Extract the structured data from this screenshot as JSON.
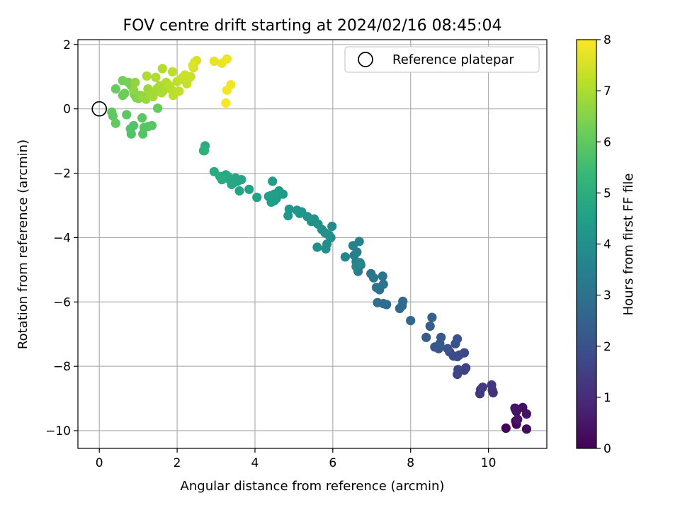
{
  "chart_data": {
    "type": "scatter",
    "title": "FOV centre drift starting at 2024/02/16 08:45:04",
    "xlabel": "Angular distance from reference (arcmin)",
    "ylabel": "Rotation from reference (arcmin)",
    "xlim": [
      -0.55,
      11.5
    ],
    "ylim": [
      -10.55,
      2.15
    ],
    "xticks": [
      0,
      2,
      4,
      6,
      8,
      10
    ],
    "yticks": [
      -10,
      -8,
      -6,
      -4,
      -2,
      0,
      2
    ],
    "grid": true,
    "legend": {
      "placement": "top-right",
      "entries": [
        "Reference platepar"
      ]
    },
    "reference_point": {
      "x": 0,
      "y": 0
    },
    "colorbar": {
      "label": "Hours from first FF file",
      "range": [
        0,
        8
      ],
      "ticks": [
        0,
        1,
        2,
        3,
        4,
        5,
        6,
        7,
        8
      ],
      "colormap": "viridis"
    },
    "points": [
      [
        10.45,
        -9.92,
        0.05
      ],
      [
        10.7,
        -9.7,
        0.1
      ],
      [
        10.72,
        -9.8,
        0.15
      ],
      [
        10.98,
        -9.95,
        0.2
      ],
      [
        10.68,
        -9.3,
        0.25
      ],
      [
        10.72,
        -9.4,
        0.3
      ],
      [
        10.88,
        -9.28,
        0.35
      ],
      [
        10.98,
        -9.48,
        0.4
      ],
      [
        10.7,
        -9.35,
        0.45
      ],
      [
        10.75,
        -9.65,
        0.5
      ],
      [
        10.1,
        -8.75,
        1.1
      ],
      [
        10.12,
        -8.82,
        1.15
      ],
      [
        9.8,
        -8.72,
        1.2
      ],
      [
        9.78,
        -8.85,
        1.25
      ],
      [
        10.08,
        -8.58,
        1.3
      ],
      [
        9.85,
        -8.65,
        1.35
      ],
      [
        9.38,
        -8.12,
        1.5
      ],
      [
        9.42,
        -8.05,
        1.55
      ],
      [
        9.2,
        -8.25,
        1.6
      ],
      [
        9.22,
        -8.1,
        1.65
      ],
      [
        9.38,
        -7.58,
        1.7
      ],
      [
        9.25,
        -7.65,
        1.75
      ],
      [
        9.1,
        -7.68,
        1.8
      ],
      [
        9.2,
        -7.7,
        1.85
      ],
      [
        9.0,
        -7.55,
        1.9
      ],
      [
        9.15,
        -7.3,
        1.95
      ],
      [
        9.2,
        -7.15,
        2.0
      ],
      [
        8.95,
        -7.45,
        2.05
      ],
      [
        8.72,
        -7.45,
        2.1
      ],
      [
        8.62,
        -7.4,
        2.15
      ],
      [
        8.78,
        -7.1,
        2.2
      ],
      [
        8.75,
        -7.3,
        2.25
      ],
      [
        8.4,
        -7.1,
        2.3
      ],
      [
        8.5,
        -6.75,
        2.35
      ],
      [
        8.55,
        -6.48,
        2.4
      ],
      [
        8.0,
        -6.58,
        2.6
      ],
      [
        7.78,
        -6.12,
        2.65
      ],
      [
        7.72,
        -6.2,
        2.7
      ],
      [
        7.8,
        -5.98,
        2.75
      ],
      [
        7.3,
        -6.05,
        2.8
      ],
      [
        7.38,
        -6.08,
        2.85
      ],
      [
        7.15,
        -6.02,
        2.9
      ],
      [
        7.2,
        -5.62,
        2.95
      ],
      [
        7.12,
        -5.55,
        3.0
      ],
      [
        7.3,
        -5.45,
        3.05
      ],
      [
        7.28,
        -5.2,
        3.1
      ],
      [
        6.98,
        -5.12,
        3.15
      ],
      [
        7.05,
        -5.25,
        3.2
      ],
      [
        6.65,
        -5.05,
        3.3
      ],
      [
        6.72,
        -4.85,
        3.35
      ],
      [
        6.6,
        -4.75,
        3.4
      ],
      [
        6.55,
        -4.55,
        3.45
      ],
      [
        6.62,
        -4.45,
        3.5
      ],
      [
        6.68,
        -4.12,
        3.55
      ],
      [
        6.52,
        -4.25,
        3.6
      ],
      [
        6.32,
        -4.6,
        3.65
      ],
      [
        6.7,
        -4.78,
        3.7
      ],
      [
        6.6,
        -4.9,
        3.75
      ],
      [
        5.98,
        -3.65,
        3.85
      ],
      [
        5.95,
        -4.0,
        3.9
      ],
      [
        5.85,
        -4.2,
        3.92
      ],
      [
        5.82,
        -4.35,
        3.94
      ],
      [
        5.6,
        -4.3,
        3.96
      ],
      [
        5.72,
        -3.75,
        3.98
      ],
      [
        5.8,
        -3.85,
        4.0
      ],
      [
        5.9,
        -3.92,
        4.02
      ],
      [
        5.62,
        -3.58,
        4.05
      ],
      [
        5.52,
        -3.42,
        4.08
      ],
      [
        5.45,
        -3.5,
        4.1
      ],
      [
        5.35,
        -3.35,
        4.12
      ],
      [
        5.2,
        -3.2,
        4.15
      ],
      [
        5.15,
        -3.25,
        4.18
      ],
      [
        5.08,
        -3.15,
        4.2
      ],
      [
        4.88,
        -3.12,
        4.22
      ],
      [
        4.85,
        -3.32,
        4.25
      ],
      [
        4.72,
        -2.65,
        4.35
      ],
      [
        4.62,
        -2.55,
        4.38
      ],
      [
        4.55,
        -2.78,
        4.4
      ],
      [
        4.5,
        -2.85,
        4.42
      ],
      [
        4.42,
        -2.9,
        4.44
      ],
      [
        4.35,
        -2.72,
        4.46
      ],
      [
        4.45,
        -2.25,
        4.48
      ],
      [
        4.5,
        -2.65,
        4.5
      ],
      [
        4.4,
        -2.7,
        4.52
      ],
      [
        4.05,
        -2.75,
        4.55
      ],
      [
        3.85,
        -2.5,
        4.58
      ],
      [
        3.6,
        -2.55,
        4.65
      ],
      [
        3.65,
        -2.2,
        4.68
      ],
      [
        3.55,
        -2.25,
        4.7
      ],
      [
        3.5,
        -2.15,
        4.72
      ],
      [
        3.45,
        -2.3,
        4.74
      ],
      [
        3.4,
        -2.35,
        4.76
      ],
      [
        3.35,
        -2.2,
        4.78
      ],
      [
        3.3,
        -2.1,
        4.8
      ],
      [
        3.25,
        -2.05,
        4.82
      ],
      [
        3.2,
        -2.15,
        4.84
      ],
      [
        3.15,
        -2.2,
        4.86
      ],
      [
        3.1,
        -2.1,
        4.88
      ],
      [
        2.95,
        -1.95,
        4.9
      ],
      [
        2.72,
        -1.15,
        4.95
      ],
      [
        2.7,
        -1.3,
        5.0
      ],
      [
        2.68,
        -1.3,
        5.05
      ],
      [
        0.82,
        -0.78,
        5.75
      ],
      [
        0.8,
        -0.62,
        5.78
      ],
      [
        0.88,
        -0.52,
        5.8
      ],
      [
        1.12,
        -0.78,
        5.82
      ],
      [
        1.15,
        -0.58,
        5.85
      ],
      [
        1.25,
        -0.55,
        5.88
      ],
      [
        1.35,
        -0.52,
        5.9
      ],
      [
        1.1,
        -0.28,
        5.92
      ],
      [
        0.7,
        -0.18,
        5.95
      ],
      [
        0.32,
        -0.1,
        5.98
      ],
      [
        0.35,
        -0.22,
        6.0
      ],
      [
        0.42,
        -0.45,
        6.02
      ],
      [
        1.5,
        0.02,
        6.05
      ],
      [
        0.42,
        0.62,
        6.1
      ],
      [
        0.6,
        0.42,
        6.15
      ],
      [
        0.65,
        0.48,
        6.2
      ],
      [
        0.6,
        0.88,
        6.25
      ],
      [
        0.75,
        0.82,
        6.3
      ],
      [
        0.82,
        0.72,
        6.35
      ],
      [
        0.9,
        0.45,
        6.4
      ],
      [
        0.95,
        0.35,
        6.45
      ],
      [
        1.0,
        0.32,
        6.5
      ],
      [
        1.05,
        0.42,
        6.55
      ],
      [
        0.88,
        0.58,
        6.6
      ],
      [
        0.92,
        0.82,
        6.65
      ],
      [
        1.1,
        0.4,
        6.7
      ],
      [
        1.2,
        0.3,
        6.75
      ],
      [
        1.25,
        0.62,
        6.8
      ],
      [
        1.32,
        0.45,
        6.85
      ],
      [
        1.38,
        0.38,
        6.88
      ],
      [
        1.42,
        0.52,
        6.9
      ],
      [
        1.48,
        0.62,
        6.92
      ],
      [
        1.55,
        0.72,
        6.95
      ],
      [
        1.6,
        0.5,
        6.98
      ],
      [
        1.65,
        0.58,
        7.0
      ],
      [
        1.22,
        1.02,
        7.02
      ],
      [
        1.45,
        0.98,
        7.05
      ],
      [
        1.62,
        1.25,
        7.08
      ],
      [
        1.72,
        0.82,
        7.1
      ],
      [
        1.8,
        0.72,
        7.12
      ],
      [
        1.85,
        0.6,
        7.14
      ],
      [
        1.9,
        0.42,
        7.16
      ],
      [
        1.95,
        0.52,
        7.18
      ],
      [
        1.88,
        1.15,
        7.2
      ],
      [
        2.0,
        0.85,
        7.22
      ],
      [
        2.05,
        0.55,
        7.24
      ],
      [
        2.1,
        0.92,
        7.26
      ],
      [
        2.15,
        0.98,
        7.28
      ],
      [
        2.2,
        1.05,
        7.3
      ],
      [
        2.25,
        0.78,
        7.32
      ],
      [
        2.3,
        0.95,
        7.34
      ],
      [
        2.35,
        1.0,
        7.36
      ],
      [
        2.2,
        1.05,
        7.38
      ],
      [
        2.42,
        1.28,
        7.45
      ],
      [
        2.45,
        1.45,
        7.5
      ],
      [
        2.5,
        1.5,
        7.55
      ],
      [
        2.4,
        1.35,
        7.6
      ],
      [
        2.95,
        1.48,
        7.72
      ],
      [
        3.15,
        1.42,
        7.75
      ],
      [
        3.28,
        1.55,
        7.8
      ],
      [
        3.38,
        0.75,
        7.85
      ],
      [
        3.28,
        0.58,
        7.88
      ],
      [
        3.25,
        0.18,
        7.92
      ]
    ]
  }
}
